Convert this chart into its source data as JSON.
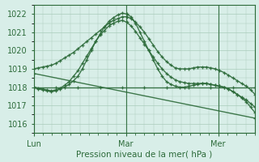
{
  "background_color": "#d8eee8",
  "grid_color": "#aaccbb",
  "line_color": "#2d6b3a",
  "title": "Pression niveau de la mer( hPa )",
  "day_labels": [
    "Lun",
    "Mar",
    "Mer"
  ],
  "day_positions": [
    0.0,
    0.417,
    0.833
  ],
  "ylim": [
    1015.5,
    1022.5
  ],
  "yticks": [
    1016,
    1017,
    1018,
    1019,
    1020,
    1021,
    1022
  ],
  "xlim": [
    0.0,
    1.0
  ],
  "series": [
    {
      "x": [
        0.0,
        0.02,
        0.04,
        0.06,
        0.08,
        0.1,
        0.12,
        0.14,
        0.16,
        0.18,
        0.2,
        0.22,
        0.24,
        0.26,
        0.28,
        0.3,
        0.32,
        0.34,
        0.36,
        0.38,
        0.4,
        0.42,
        0.44,
        0.46,
        0.48,
        0.5,
        0.52,
        0.54,
        0.56,
        0.58,
        0.6,
        0.62,
        0.64,
        0.66,
        0.68,
        0.7,
        0.72,
        0.74,
        0.76,
        0.78,
        0.8,
        0.82,
        0.84,
        0.86,
        0.88,
        0.9,
        0.92,
        0.94,
        0.96,
        0.98,
        1.0
      ],
      "y": [
        1018.0,
        1017.9,
        1017.85,
        1017.8,
        1017.75,
        1017.8,
        1017.9,
        1018.0,
        1018.15,
        1018.35,
        1018.6,
        1019.0,
        1019.5,
        1020.0,
        1020.5,
        1020.9,
        1021.3,
        1021.6,
        1021.8,
        1021.95,
        1022.05,
        1022.0,
        1021.85,
        1021.5,
        1021.0,
        1020.5,
        1020.0,
        1019.5,
        1019.0,
        1018.6,
        1018.3,
        1018.15,
        1018.05,
        1018.0,
        1018.0,
        1018.05,
        1018.1,
        1018.15,
        1018.2,
        1018.2,
        1018.15,
        1018.1,
        1018.05,
        1018.0,
        1017.9,
        1017.75,
        1017.6,
        1017.4,
        1017.2,
        1016.9,
        1016.6
      ]
    },
    {
      "x": [
        0.0,
        0.02,
        0.04,
        0.06,
        0.08,
        0.1,
        0.12,
        0.14,
        0.16,
        0.18,
        0.2,
        0.22,
        0.24,
        0.26,
        0.28,
        0.3,
        0.32,
        0.34,
        0.36,
        0.38,
        0.4,
        0.42,
        0.44,
        0.46,
        0.48,
        0.5,
        0.52,
        0.54,
        0.56,
        0.58,
        0.6,
        0.62,
        0.64,
        0.66,
        0.68,
        0.7,
        0.72,
        0.74,
        0.76,
        0.78,
        0.8,
        0.82,
        0.84,
        0.86,
        0.88,
        0.9,
        0.92,
        0.94,
        0.96,
        0.98,
        1.0
      ],
      "y": [
        1018.0,
        1017.95,
        1017.9,
        1017.85,
        1017.8,
        1017.85,
        1017.95,
        1018.1,
        1018.3,
        1018.6,
        1018.9,
        1019.3,
        1019.7,
        1020.1,
        1020.5,
        1020.85,
        1021.1,
        1021.35,
        1021.5,
        1021.6,
        1021.65,
        1021.55,
        1021.35,
        1021.05,
        1020.7,
        1020.35,
        1020.0,
        1019.65,
        1019.3,
        1019.0,
        1018.75,
        1018.55,
        1018.4,
        1018.3,
        1018.25,
        1018.2,
        1018.2,
        1018.2,
        1018.2,
        1018.2,
        1018.15,
        1018.1,
        1018.05,
        1018.0,
        1017.9,
        1017.75,
        1017.6,
        1017.45,
        1017.3,
        1017.1,
        1016.9
      ]
    },
    {
      "x": [
        0.0,
        0.02,
        0.04,
        0.06,
        0.08,
        0.1,
        0.12,
        0.14,
        0.16,
        0.18,
        0.2,
        0.22,
        0.24,
        0.26,
        0.28,
        0.3,
        0.32,
        0.34,
        0.36,
        0.38,
        0.4,
        0.42,
        0.44,
        0.46,
        0.48,
        0.5,
        0.52,
        0.54,
        0.56,
        0.58,
        0.6,
        0.62,
        0.64,
        0.66,
        0.68,
        0.7,
        0.72,
        0.74,
        0.76,
        0.78,
        0.8,
        0.82,
        0.84,
        0.86,
        0.88,
        0.9,
        0.92,
        0.94,
        0.96,
        0.98,
        1.0
      ],
      "y": [
        1019.0,
        1019.05,
        1019.1,
        1019.15,
        1019.2,
        1019.3,
        1019.45,
        1019.6,
        1019.75,
        1019.9,
        1020.1,
        1020.3,
        1020.5,
        1020.7,
        1020.9,
        1021.1,
        1021.3,
        1021.5,
        1021.65,
        1021.75,
        1021.85,
        1021.85,
        1021.75,
        1021.55,
        1021.3,
        1021.0,
        1020.65,
        1020.3,
        1019.95,
        1019.65,
        1019.4,
        1019.2,
        1019.05,
        1019.0,
        1019.0,
        1019.0,
        1019.05,
        1019.1,
        1019.1,
        1019.1,
        1019.05,
        1019.0,
        1018.9,
        1018.8,
        1018.65,
        1018.5,
        1018.35,
        1018.2,
        1018.05,
        1017.85,
        1017.6
      ]
    },
    {
      "x": [
        0.0,
        0.1,
        0.2,
        0.3,
        0.4,
        0.5,
        0.6,
        0.7,
        0.8,
        0.9,
        1.0
      ],
      "y": [
        1018.0,
        1018.0,
        1018.0,
        1018.0,
        1018.0,
        1018.0,
        1018.0,
        1018.0,
        1018.0,
        1018.0,
        1018.0
      ]
    },
    {
      "x": [
        0.0,
        1.0
      ],
      "y": [
        1018.75,
        1016.3
      ]
    }
  ]
}
